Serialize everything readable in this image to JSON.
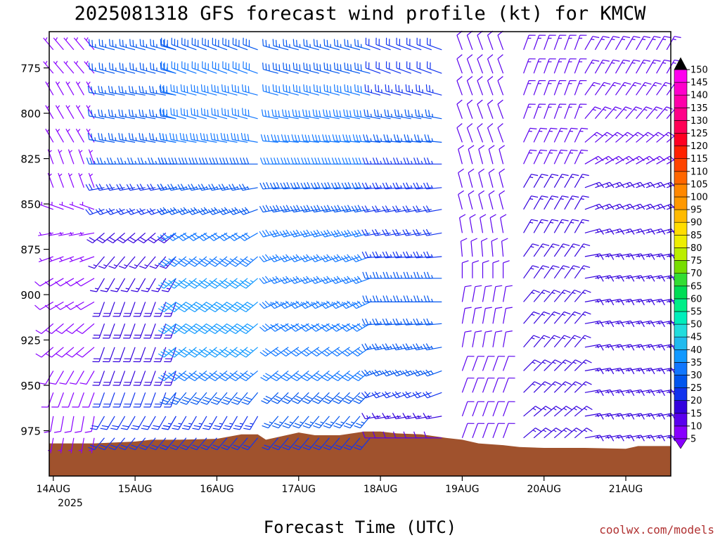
{
  "chart_data": {
    "type": "wind-barb profile",
    "title": "2025081318 GFS forecast wind profile (kt) for KMCW",
    "xlabel": "Forecast Time (UTC)",
    "x_ticks": [
      "14AUG",
      "15AUG",
      "16AUG",
      "17AUG",
      "18AUG",
      "19AUG",
      "20AUG",
      "21AUG"
    ],
    "x_year": "2025",
    "y_ticks": [
      775,
      800,
      825,
      850,
      875,
      900,
      925,
      950,
      975
    ],
    "ylim": [
      1000,
      755
    ],
    "x_range_days": [
      -0.05,
      7.55
    ],
    "colorbar": {
      "ticks": [
        5,
        10,
        15,
        20,
        25,
        30,
        35,
        40,
        45,
        50,
        55,
        60,
        65,
        70,
        75,
        80,
        85,
        90,
        95,
        100,
        105,
        110,
        115,
        120,
        125,
        130,
        135,
        140,
        145,
        150
      ],
      "colors": [
        "#8800ff",
        "#5a00ee",
        "#3300dd",
        "#1133ee",
        "#0055ee",
        "#1177ff",
        "#1199ff",
        "#22bbee",
        "#22dddd",
        "#00eebb",
        "#00ee88",
        "#00dd55",
        "#33dd33",
        "#77dd00",
        "#bbee00",
        "#eeee00",
        "#ffdd00",
        "#ffbb00",
        "#ff9900",
        "#ff8800",
        "#ff6600",
        "#ff4400",
        "#ff2200",
        "#ff0022",
        "#ff0055",
        "#ff0088",
        "#ff00aa",
        "#ff00cc",
        "#ff00ee",
        "#ee00ff"
      ]
    },
    "terrain": {
      "color": "#a0522d",
      "points": [
        [
          -0.05,
          982
        ],
        [
          0.5,
          982
        ],
        [
          1.0,
          981
        ],
        [
          1.2,
          980
        ],
        [
          1.5,
          980
        ],
        [
          2.0,
          979.5
        ],
        [
          2.3,
          977
        ],
        [
          2.5,
          977
        ],
        [
          2.6,
          980
        ],
        [
          2.8,
          978
        ],
        [
          3.0,
          976
        ],
        [
          3.2,
          977.5
        ],
        [
          3.5,
          977.5
        ],
        [
          3.8,
          975.5
        ],
        [
          4.0,
          975.5
        ],
        [
          4.2,
          976.5
        ],
        [
          4.5,
          977
        ],
        [
          4.8,
          979
        ],
        [
          5.0,
          980
        ],
        [
          5.2,
          982
        ],
        [
          5.5,
          983
        ],
        [
          5.7,
          984
        ],
        [
          6.0,
          984.5
        ],
        [
          6.5,
          984.5
        ],
        [
          7.0,
          985
        ],
        [
          7.15,
          983.5
        ],
        [
          7.55,
          983.5
        ]
      ]
    },
    "wind_grid": {
      "levels": [
        765,
        778,
        790,
        803,
        816,
        828,
        841,
        853,
        866,
        879,
        891,
        904,
        916,
        929,
        942,
        954,
        967,
        979
      ],
      "segments": [
        {
          "t0": 0.0,
          "t1": 0.5,
          "dir": [
            320,
            320,
            330,
            330,
            330,
            340,
            340,
            290,
            260,
            250,
            240,
            240,
            230,
            230,
            210,
            200,
            190,
            190
          ],
          "spd": [
            7,
            7,
            7,
            7,
            7,
            6,
            6,
            6,
            5,
            6,
            8,
            8,
            9,
            9,
            8,
            8,
            8,
            7
          ]
        },
        {
          "t0": 0.625,
          "t1": 1.5,
          "dir": [
            285,
            285,
            280,
            280,
            280,
            270,
            260,
            250,
            230,
            220,
            210,
            200,
            200,
            200,
            200,
            200,
            210,
            220
          ],
          "spd": [
            25,
            26,
            27,
            27,
            27,
            25,
            22,
            20,
            18,
            17,
            17,
            18,
            18,
            18,
            19,
            20,
            20,
            20
          ]
        },
        {
          "t0": 1.5,
          "t1": 2.6,
          "dir": [
            290,
            290,
            285,
            285,
            280,
            270,
            260,
            250,
            240,
            230,
            230,
            230,
            230,
            230,
            230,
            220,
            210,
            220
          ],
          "spd": [
            28,
            30,
            32,
            32,
            30,
            28,
            27,
            28,
            30,
            33,
            36,
            38,
            38,
            36,
            33,
            28,
            24,
            22
          ]
        },
        {
          "t0": 2.75,
          "t1": 3.9,
          "dir": [
            285,
            285,
            285,
            280,
            275,
            270,
            265,
            260,
            255,
            250,
            250,
            245,
            240,
            235,
            230,
            225,
            220,
            220
          ],
          "spd": [
            27,
            28,
            30,
            31,
            31,
            30,
            29,
            29,
            30,
            31,
            32,
            33,
            33,
            32,
            30,
            28,
            25,
            22
          ]
        },
        {
          "t0": 4.0,
          "t1": 4.75,
          "dir": [
            290,
            290,
            285,
            280,
            275,
            270,
            265,
            260,
            260,
            265,
            270,
            270,
            265,
            260,
            250,
            250,
            260,
            270
          ],
          "spd": [
            20,
            22,
            24,
            25,
            25,
            24,
            23,
            22,
            22,
            23,
            25,
            26,
            27,
            27,
            26,
            22,
            16,
            12
          ]
        },
        {
          "t0": 5.0,
          "t1": 5.6,
          "dir": [
            340,
            340,
            340,
            340,
            340,
            345,
            345,
            345,
            350,
            355,
            0,
            10,
            10,
            10,
            20,
            20,
            20,
            20
          ],
          "spd": [
            12,
            12,
            12,
            12,
            12,
            12,
            12,
            12,
            12,
            12,
            12,
            12,
            12,
            12,
            12,
            12,
            12,
            12
          ]
        },
        {
          "t0": 5.75,
          "t1": 6.375,
          "dir": [
            20,
            20,
            20,
            20,
            25,
            25,
            30,
            30,
            30,
            35,
            35,
            40,
            40,
            40,
            45,
            45,
            50,
            50
          ],
          "spd": [
            13,
            13,
            14,
            14,
            14,
            14,
            15,
            15,
            15,
            15,
            15,
            15,
            15,
            16,
            16,
            16,
            16,
            16
          ]
        },
        {
          "t0": 6.5,
          "t1": 7.5,
          "dir": [
            30,
            30,
            35,
            40,
            50,
            60,
            70,
            70,
            75,
            80,
            80,
            80,
            80,
            80,
            80,
            80,
            80,
            80
          ],
          "spd": [
            13,
            13,
            14,
            14,
            14,
            14,
            15,
            15,
            15,
            15,
            16,
            16,
            16,
            16,
            16,
            16,
            16,
            16
          ]
        }
      ]
    }
  },
  "credit": "coolwx.com/models"
}
